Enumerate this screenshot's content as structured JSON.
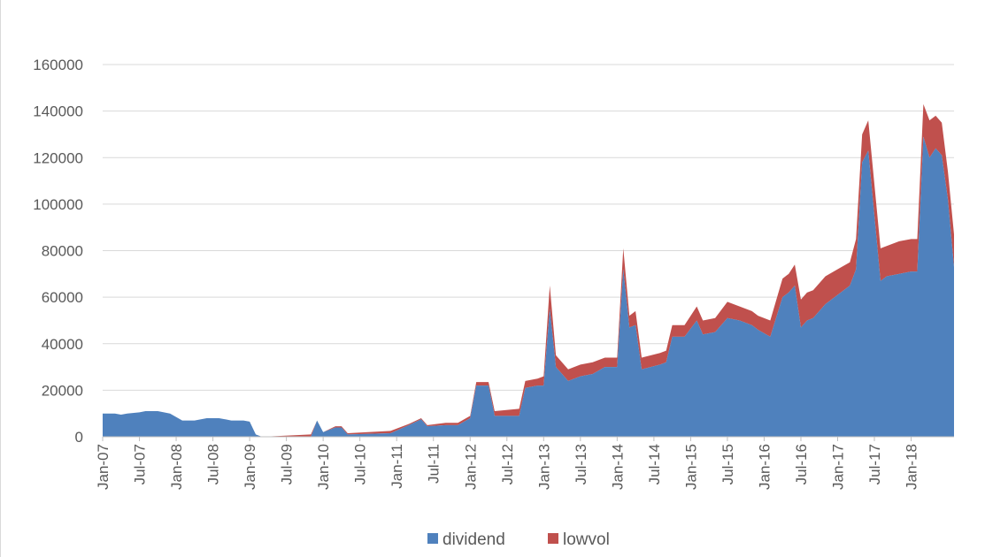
{
  "chart_data": {
    "type": "area",
    "stacked": true,
    "grid": true,
    "legend_position": "bottom",
    "ylim": [
      0,
      160000
    ],
    "yticks": [
      "0",
      "20000",
      "40000",
      "60000",
      "80000",
      "100000",
      "120000",
      "140000",
      "160000"
    ],
    "xticks": [
      "Jan-07",
      "Jul-07",
      "Jan-08",
      "Jul-08",
      "Jan-09",
      "Jul-09",
      "Jan-10",
      "Jul-10",
      "Jan-11",
      "Jul-11",
      "Jan-12",
      "Jul-12",
      "Jan-13",
      "Jul-13",
      "Jan-14",
      "Jul-14",
      "Jan-15",
      "Jul-15",
      "Jan-16",
      "Jul-16",
      "Jan-17",
      "Jul-17",
      "Jan-18"
    ],
    "colors": {
      "dividend": "#4f81bd",
      "lowvol": "#c0504d"
    },
    "series": [
      {
        "name": "dividend",
        "points": [
          [
            "2007-01",
            10000
          ],
          [
            "2007-03",
            10000
          ],
          [
            "2007-04",
            9500
          ],
          [
            "2007-05",
            10000
          ],
          [
            "2007-07",
            10500
          ],
          [
            "2007-08",
            11000
          ],
          [
            "2007-10",
            11000
          ],
          [
            "2007-12",
            10000
          ],
          [
            "2008-02",
            7000
          ],
          [
            "2008-04",
            7000
          ],
          [
            "2008-06",
            8000
          ],
          [
            "2008-08",
            8000
          ],
          [
            "2008-10",
            7000
          ],
          [
            "2008-12",
            7000
          ],
          [
            "2009-01",
            6500
          ],
          [
            "2009-02",
            1000
          ],
          [
            "2009-03",
            0
          ],
          [
            "2009-11",
            0
          ],
          [
            "2009-12",
            7000
          ],
          [
            "2010-01",
            2000
          ],
          [
            "2010-03",
            4000
          ],
          [
            "2010-04",
            4000
          ],
          [
            "2010-05",
            1000
          ],
          [
            "2010-12",
            1500
          ],
          [
            "2011-03",
            5000
          ],
          [
            "2011-05",
            7500
          ],
          [
            "2011-06",
            4500
          ],
          [
            "2011-09",
            5000
          ],
          [
            "2011-11",
            5000
          ],
          [
            "2012-01",
            8000
          ],
          [
            "2012-02",
            22000
          ],
          [
            "2012-04",
            22000
          ],
          [
            "2012-05",
            9000
          ],
          [
            "2012-09",
            9000
          ],
          [
            "2012-10",
            21000
          ],
          [
            "2012-12",
            22000
          ],
          [
            "2013-01",
            22000
          ],
          [
            "2013-02",
            55000
          ],
          [
            "2013-03",
            30000
          ],
          [
            "2013-05",
            24000
          ],
          [
            "2013-07",
            26000
          ],
          [
            "2013-09",
            27000
          ],
          [
            "2013-11",
            30000
          ],
          [
            "2014-01",
            30000
          ],
          [
            "2014-02",
            72000
          ],
          [
            "2014-03",
            47000
          ],
          [
            "2014-04",
            48000
          ],
          [
            "2014-05",
            29000
          ],
          [
            "2014-08",
            31000
          ],
          [
            "2014-09",
            32000
          ],
          [
            "2014-10",
            43000
          ],
          [
            "2014-12",
            43000
          ],
          [
            "2015-02",
            50000
          ],
          [
            "2015-03",
            44000
          ],
          [
            "2015-05",
            45000
          ],
          [
            "2015-07",
            51000
          ],
          [
            "2015-09",
            50000
          ],
          [
            "2015-11",
            48000
          ],
          [
            "2015-12",
            46000
          ],
          [
            "2016-02",
            43000
          ],
          [
            "2016-04",
            60000
          ],
          [
            "2016-05",
            62000
          ],
          [
            "2016-06",
            65000
          ],
          [
            "2016-07",
            47000
          ],
          [
            "2016-08",
            50000
          ],
          [
            "2016-09",
            51000
          ],
          [
            "2016-11",
            57000
          ],
          [
            "2017-01",
            61000
          ],
          [
            "2017-03",
            65000
          ],
          [
            "2017-04",
            72000
          ],
          [
            "2017-05",
            118000
          ],
          [
            "2017-06",
            123000
          ],
          [
            "2017-08",
            67000
          ],
          [
            "2017-09",
            69000
          ],
          [
            "2017-11",
            70000
          ],
          [
            "2018-01",
            71000
          ],
          [
            "2018-02",
            71000
          ],
          [
            "2018-03",
            129000
          ],
          [
            "2018-04",
            120000
          ],
          [
            "2018-05",
            124000
          ],
          [
            "2018-06",
            121000
          ],
          [
            "2018-07",
            102000
          ],
          [
            "2018-08",
            73000
          ]
        ]
      },
      {
        "name": "lowvol",
        "points": [
          [
            "2007-01",
            0
          ],
          [
            "2007-03",
            0
          ],
          [
            "2007-04",
            0
          ],
          [
            "2007-05",
            0
          ],
          [
            "2007-07",
            0
          ],
          [
            "2007-08",
            0
          ],
          [
            "2007-10",
            0
          ],
          [
            "2007-12",
            0
          ],
          [
            "2008-02",
            0
          ],
          [
            "2008-04",
            0
          ],
          [
            "2008-06",
            0
          ],
          [
            "2008-08",
            0
          ],
          [
            "2008-10",
            0
          ],
          [
            "2008-12",
            0
          ],
          [
            "2009-01",
            0
          ],
          [
            "2009-02",
            0
          ],
          [
            "2009-03",
            0
          ],
          [
            "2009-11",
            1000
          ],
          [
            "2009-12",
            0
          ],
          [
            "2010-01",
            0
          ],
          [
            "2010-03",
            500
          ],
          [
            "2010-04",
            500
          ],
          [
            "2010-05",
            500
          ],
          [
            "2010-12",
            1000
          ],
          [
            "2011-03",
            500
          ],
          [
            "2011-05",
            500
          ],
          [
            "2011-06",
            500
          ],
          [
            "2011-09",
            1000
          ],
          [
            "2011-11",
            1000
          ],
          [
            "2012-01",
            1000
          ],
          [
            "2012-02",
            1500
          ],
          [
            "2012-04",
            1500
          ],
          [
            "2012-05",
            2000
          ],
          [
            "2012-09",
            3000
          ],
          [
            "2012-10",
            3000
          ],
          [
            "2012-12",
            3000
          ],
          [
            "2013-01",
            4000
          ],
          [
            "2013-02",
            10000
          ],
          [
            "2013-03",
            5000
          ],
          [
            "2013-05",
            5000
          ],
          [
            "2013-07",
            5000
          ],
          [
            "2013-09",
            5000
          ],
          [
            "2013-11",
            4000
          ],
          [
            "2014-01",
            4000
          ],
          [
            "2014-02",
            9000
          ],
          [
            "2014-03",
            5000
          ],
          [
            "2014-04",
            6000
          ],
          [
            "2014-05",
            5000
          ],
          [
            "2014-08",
            5000
          ],
          [
            "2014-09",
            5000
          ],
          [
            "2014-10",
            5000
          ],
          [
            "2014-12",
            5000
          ],
          [
            "2015-02",
            6000
          ],
          [
            "2015-03",
            6000
          ],
          [
            "2015-05",
            6000
          ],
          [
            "2015-07",
            7000
          ],
          [
            "2015-09",
            6000
          ],
          [
            "2015-11",
            6000
          ],
          [
            "2015-12",
            6000
          ],
          [
            "2016-02",
            7000
          ],
          [
            "2016-04",
            8000
          ],
          [
            "2016-05",
            8000
          ],
          [
            "2016-06",
            9000
          ],
          [
            "2016-07",
            12000
          ],
          [
            "2016-08",
            12000
          ],
          [
            "2016-09",
            12000
          ],
          [
            "2016-11",
            12000
          ],
          [
            "2017-01",
            11000
          ],
          [
            "2017-03",
            10000
          ],
          [
            "2017-04",
            13000
          ],
          [
            "2017-05",
            12000
          ],
          [
            "2017-06",
            13000
          ],
          [
            "2017-08",
            14000
          ],
          [
            "2017-09",
            13000
          ],
          [
            "2017-11",
            14000
          ],
          [
            "2018-01",
            14000
          ],
          [
            "2018-02",
            14000
          ],
          [
            "2018-03",
            14000
          ],
          [
            "2018-04",
            16000
          ],
          [
            "2018-05",
            14000
          ],
          [
            "2018-06",
            14000
          ],
          [
            "2018-07",
            12000
          ],
          [
            "2018-08",
            14000
          ]
        ]
      }
    ]
  }
}
